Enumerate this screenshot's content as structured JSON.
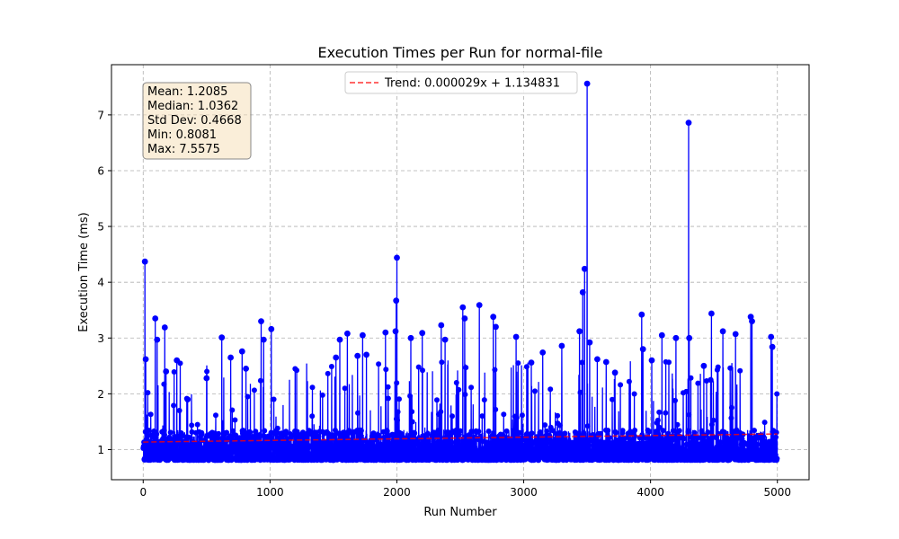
{
  "chart_data": {
    "type": "line",
    "title": "Execution Times per Run for normal-file",
    "xlabel": "Run Number",
    "ylabel": "Execution Time (ms)",
    "xlim": [
      -250,
      5250
    ],
    "ylim": [
      0.46,
      7.9
    ],
    "xticks": [
      0,
      1000,
      2000,
      3000,
      4000,
      5000
    ],
    "yticks": [
      1,
      2,
      3,
      4,
      5,
      6,
      7
    ],
    "grid": true,
    "series": [
      {
        "name": "Execution Time",
        "color": "#0000ff",
        "marker": "circle",
        "n_points": 5000,
        "baseline_range": [
          0.81,
          1.35
        ],
        "spikes": [
          {
            "x": 14,
            "y": 4.37
          },
          {
            "x": 20,
            "y": 2.62
          },
          {
            "x": 95,
            "y": 3.35
          },
          {
            "x": 110,
            "y": 2.97
          },
          {
            "x": 170,
            "y": 3.19
          },
          {
            "x": 180,
            "y": 2.4
          },
          {
            "x": 265,
            "y": 2.6
          },
          {
            "x": 350,
            "y": 1.9
          },
          {
            "x": 500,
            "y": 2.28
          },
          {
            "x": 620,
            "y": 3.01
          },
          {
            "x": 690,
            "y": 2.65
          },
          {
            "x": 780,
            "y": 2.76
          },
          {
            "x": 810,
            "y": 2.45
          },
          {
            "x": 930,
            "y": 3.3
          },
          {
            "x": 950,
            "y": 2.97
          },
          {
            "x": 1010,
            "y": 3.16
          },
          {
            "x": 1520,
            "y": 2.65
          },
          {
            "x": 1550,
            "y": 2.97
          },
          {
            "x": 1610,
            "y": 3.08
          },
          {
            "x": 1690,
            "y": 2.68
          },
          {
            "x": 1730,
            "y": 3.05
          },
          {
            "x": 1760,
            "y": 2.7
          },
          {
            "x": 1910,
            "y": 3.1
          },
          {
            "x": 1990,
            "y": 3.12
          },
          {
            "x": 1995,
            "y": 3.67
          },
          {
            "x": 2000,
            "y": 4.44
          },
          {
            "x": 2110,
            "y": 3.0
          },
          {
            "x": 2200,
            "y": 3.09
          },
          {
            "x": 2350,
            "y": 3.23
          },
          {
            "x": 2380,
            "y": 2.97
          },
          {
            "x": 2520,
            "y": 3.55
          },
          {
            "x": 2535,
            "y": 3.35
          },
          {
            "x": 2650,
            "y": 3.59
          },
          {
            "x": 2760,
            "y": 3.38
          },
          {
            "x": 2780,
            "y": 3.2
          },
          {
            "x": 2940,
            "y": 3.02
          },
          {
            "x": 3060,
            "y": 2.56
          },
          {
            "x": 3150,
            "y": 2.74
          },
          {
            "x": 3300,
            "y": 2.86
          },
          {
            "x": 3440,
            "y": 3.12
          },
          {
            "x": 3465,
            "y": 3.82
          },
          {
            "x": 3480,
            "y": 4.24
          },
          {
            "x": 3500,
            "y": 7.56
          },
          {
            "x": 3520,
            "y": 2.92
          },
          {
            "x": 3580,
            "y": 2.62
          },
          {
            "x": 3650,
            "y": 2.57
          },
          {
            "x": 3720,
            "y": 2.38
          },
          {
            "x": 3930,
            "y": 3.42
          },
          {
            "x": 3940,
            "y": 2.8
          },
          {
            "x": 4010,
            "y": 2.6
          },
          {
            "x": 4090,
            "y": 3.05
          },
          {
            "x": 4200,
            "y": 3.0
          },
          {
            "x": 4300,
            "y": 6.86
          },
          {
            "x": 4305,
            "y": 3.0
          },
          {
            "x": 4420,
            "y": 2.5
          },
          {
            "x": 4480,
            "y": 3.44
          },
          {
            "x": 4570,
            "y": 3.12
          },
          {
            "x": 4670,
            "y": 3.07
          },
          {
            "x": 4790,
            "y": 3.38
          },
          {
            "x": 4800,
            "y": 3.3
          },
          {
            "x": 4950,
            "y": 3.02
          },
          {
            "x": 4960,
            "y": 2.84
          }
        ]
      }
    ],
    "trend": {
      "label": "Trend: 0.000029x + 1.134831",
      "slope": 2.9e-05,
      "intercept": 1.134831,
      "color": "#ff0000",
      "style": "dashed"
    },
    "legend_position": "top-center",
    "stats_box": [
      "Mean: 1.2085",
      "Median: 1.0362",
      "Std Dev: 0.4668",
      "Min: 0.8081",
      "Max: 7.5575"
    ]
  }
}
